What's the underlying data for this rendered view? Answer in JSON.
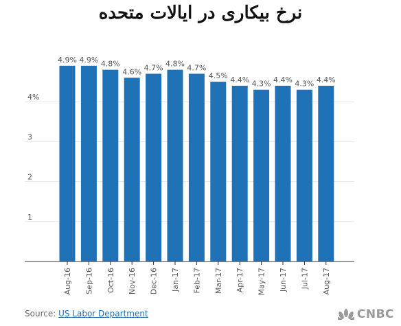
{
  "title": "نرخ بیکاری در ایالات متحده",
  "source": {
    "prefix": "Source: ",
    "link_text": "US Labor Department"
  },
  "logo": {
    "text": "CNBC"
  },
  "colors": {
    "bar": "#1f72b6",
    "grid": "#e6e6e6",
    "axis": "#333333",
    "label": "#555555"
  },
  "chart_data": {
    "type": "bar",
    "categories": [
      "Aug-16",
      "Sep-16",
      "Oct-16",
      "Nov-16",
      "Dec-16",
      "Jan-17",
      "Feb-17",
      "Mar-17",
      "Apr-17",
      "May-17",
      "Jun-17",
      "Jul-17",
      "Aug-17"
    ],
    "values": [
      4.9,
      4.9,
      4.8,
      4.6,
      4.7,
      4.8,
      4.7,
      4.5,
      4.4,
      4.3,
      4.4,
      4.3,
      4.4
    ],
    "data_labels": [
      "4.9%",
      "4.9%",
      "4.8%",
      "4.6%",
      "4.7%",
      "4.8%",
      "4.7%",
      "4.5%",
      "4.4%",
      "4.3%",
      "4.4%",
      "4.3%",
      "4.4%"
    ],
    "yticks": [
      1,
      2,
      3,
      4
    ],
    "ytick_labels": [
      "1",
      "2",
      "3",
      "4%"
    ],
    "ylim": [
      0,
      5.5
    ],
    "grid": true
  }
}
